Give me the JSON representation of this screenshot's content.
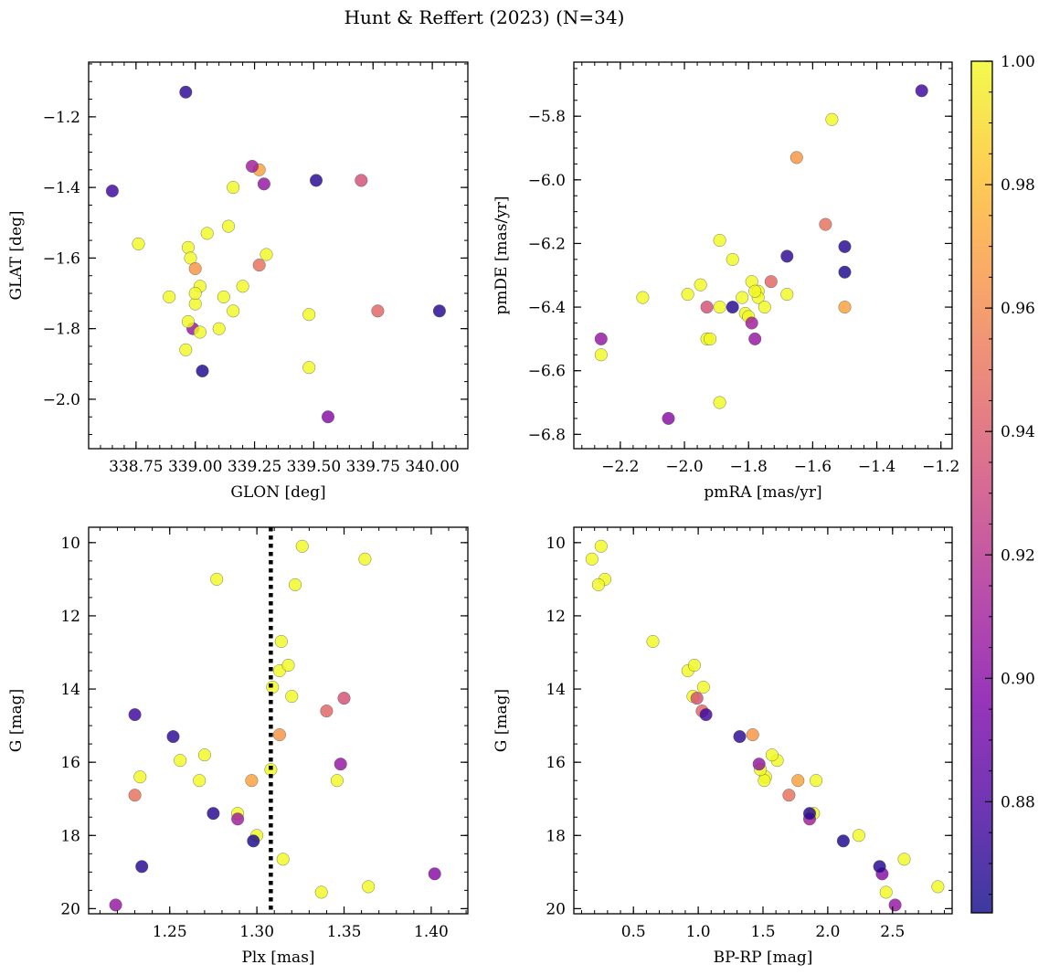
{
  "chart_data": {
    "title": "Hunt & Reffert (2023) (N=34)",
    "type": "scatter",
    "colorbar": {
      "cmap": "plasma",
      "vmin": 0.862,
      "vmax": 1.0,
      "ticks": [
        0.88,
        0.9,
        0.92,
        0.94,
        0.96,
        0.98,
        1.0
      ],
      "tick_labels": [
        "0.88",
        "0.90",
        "0.92",
        "0.94",
        "0.96",
        "0.98",
        "1.00"
      ]
    },
    "panels": [
      {
        "name": "glon-glat",
        "xlabel": "GLON [deg]",
        "ylabel": "GLAT [deg]",
        "xlim": [
          338.55,
          340.15
        ],
        "ylim": [
          -2.14,
          -1.045
        ],
        "yinvert": false,
        "xticks": [
          338.75,
          339.0,
          339.25,
          339.5,
          339.75,
          340.0
        ],
        "xtick_labels": [
          "338.75",
          "339.00",
          "339.25",
          "339.50",
          "339.75",
          "340.00"
        ],
        "yticks": [
          -2.0,
          -1.8,
          -1.6,
          -1.4,
          -1.2
        ],
        "ytick_labels": [
          "−2.0",
          "−1.8",
          "−1.6",
          "−1.4",
          "−1.2"
        ]
      },
      {
        "name": "pmra-pmde",
        "xlabel": "pmRA [mas/yr]",
        "ylabel": "pmDE [mas/yr]",
        "xlim": [
          -2.345,
          -1.165
        ],
        "ylim": [
          -6.845,
          -5.63
        ],
        "yinvert": false,
        "xticks": [
          -2.2,
          -2.0,
          -1.8,
          -1.6,
          -1.4,
          -1.2
        ],
        "xtick_labels": [
          "−2.2",
          "−2.0",
          "−1.8",
          "−1.6",
          "−1.4",
          "−1.2"
        ],
        "yticks": [
          -6.8,
          -6.6,
          -6.4,
          -6.2,
          -6.0,
          -5.8
        ],
        "ytick_labels": [
          "−6.8",
          "−6.6",
          "−6.4",
          "−6.2",
          "−6.0",
          "−5.8"
        ]
      },
      {
        "name": "plx-g",
        "xlabel": "Plx [mas]",
        "ylabel": "G [mag]",
        "xlim": [
          1.2035,
          1.421
        ],
        "ylim": [
          9.58,
          20.14
        ],
        "yinvert": true,
        "xticks": [
          1.25,
          1.3,
          1.35,
          1.4
        ],
        "xtick_labels": [
          "1.25",
          "1.30",
          "1.35",
          "1.40"
        ],
        "yticks": [
          10,
          12,
          14,
          16,
          18,
          20
        ],
        "ytick_labels": [
          "10",
          "12",
          "14",
          "16",
          "18",
          "20"
        ],
        "vline": 1.308
      },
      {
        "name": "bprp-g",
        "xlabel": "BP-RP [mag]",
        "ylabel": "G [mag]",
        "xlim": [
          0.04,
          2.96
        ],
        "ylim": [
          9.58,
          20.14
        ],
        "yinvert": true,
        "xticks": [
          0.5,
          1.0,
          1.5,
          2.0,
          2.5
        ],
        "xtick_labels": [
          "0.5",
          "1.0",
          "1.5",
          "2.0",
          "2.5"
        ],
        "yticks": [
          10,
          12,
          14,
          16,
          18,
          20
        ],
        "ytick_labels": [
          "10",
          "12",
          "14",
          "16",
          "18",
          "20"
        ]
      }
    ],
    "stars": [
      {
        "glon": 338.96,
        "glat": -1.86,
        "pmra": -2.26,
        "pmde": -6.55,
        "plx": 1.289,
        "g": 17.4,
        "bprp": 1.89,
        "prob": 1.0
      },
      {
        "glon": 338.99,
        "glat": -1.8,
        "pmra": -2.26,
        "pmde": -6.5,
        "plx": 1.219,
        "g": 19.9,
        "bprp": 2.52,
        "prob": 0.905
      },
      {
        "glon": 339.05,
        "glat": -1.53,
        "pmra": -2.13,
        "pmde": -6.37,
        "plx": 1.326,
        "g": 10.1,
        "bprp": 0.25,
        "prob": 1.0
      },
      {
        "glon": 338.97,
        "glat": -1.57,
        "pmra": -1.99,
        "pmde": -6.36,
        "plx": 1.362,
        "g": 10.45,
        "bprp": 0.18,
        "prob": 1.0
      },
      {
        "glon": 339.1,
        "glat": -1.8,
        "pmra": -1.95,
        "pmde": -6.33,
        "plx": 1.277,
        "g": 11.0,
        "bprp": 0.28,
        "prob": 1.0
      },
      {
        "glon": 339.3,
        "glat": -1.59,
        "pmra": -1.93,
        "pmde": -6.5,
        "plx": 1.322,
        "g": 11.15,
        "bprp": 0.23,
        "prob": 1.0
      },
      {
        "glon": 339.16,
        "glat": -1.4,
        "pmra": -1.92,
        "pmde": -6.5,
        "plx": 1.314,
        "g": 12.7,
        "bprp": 0.65,
        "prob": 1.0
      },
      {
        "glon": 338.98,
        "glat": -1.6,
        "pmra": -1.89,
        "pmde": -6.19,
        "plx": 1.313,
        "g": 13.5,
        "bprp": 0.92,
        "prob": 1.0
      },
      {
        "glon": 339.02,
        "glat": -1.68,
        "pmra": -1.89,
        "pmde": -6.7,
        "plx": 1.318,
        "g": 13.35,
        "bprp": 0.97,
        "prob": 1.0
      },
      {
        "glon": 339.14,
        "glat": -1.51,
        "pmra": -1.89,
        "pmde": -6.4,
        "plx": 1.309,
        "g": 13.95,
        "bprp": 1.04,
        "prob": 1.0
      },
      {
        "glon": 339.2,
        "glat": -1.68,
        "pmra": -1.85,
        "pmde": -6.25,
        "plx": 1.32,
        "g": 14.2,
        "bprp": 0.96,
        "prob": 1.0
      },
      {
        "glon": 338.89,
        "glat": -1.71,
        "pmra": -1.82,
        "pmde": -6.37,
        "plx": 1.256,
        "g": 15.95,
        "bprp": 1.61,
        "prob": 1.0
      },
      {
        "glon": 339.0,
        "glat": -1.73,
        "pmra": -1.81,
        "pmde": -6.42,
        "plx": 1.27,
        "g": 15.8,
        "bprp": 1.57,
        "prob": 1.0
      },
      {
        "glon": 339.0,
        "glat": -1.7,
        "pmra": -1.8,
        "pmde": -6.43,
        "plx": 1.233,
        "g": 16.4,
        "bprp": 1.52,
        "prob": 1.0
      },
      {
        "glon": 338.76,
        "glat": -1.56,
        "pmra": -1.79,
        "pmde": -6.32,
        "plx": 1.267,
        "g": 16.5,
        "bprp": 1.51,
        "prob": 1.0
      },
      {
        "glon": 339.12,
        "glat": -1.71,
        "pmra": -1.77,
        "pmde": -6.35,
        "plx": 1.346,
        "g": 16.5,
        "bprp": 1.91,
        "prob": 1.0
      },
      {
        "glon": 339.16,
        "glat": -1.75,
        "pmra": -1.77,
        "pmde": -6.37,
        "plx": 1.308,
        "g": 16.2,
        "bprp": 1.48,
        "prob": 1.0
      },
      {
        "glon": 339.48,
        "glat": -1.76,
        "pmra": -1.75,
        "pmde": -6.4,
        "plx": 1.3,
        "g": 18.0,
        "bprp": 2.24,
        "prob": 1.0
      },
      {
        "glon": 339.48,
        "glat": -1.91,
        "pmra": -1.68,
        "pmde": -6.36,
        "plx": 1.315,
        "g": 18.65,
        "bprp": 2.59,
        "prob": 1.0
      },
      {
        "glon": 339.02,
        "glat": -1.81,
        "pmra": -1.54,
        "pmde": -5.81,
        "plx": 1.364,
        "g": 19.4,
        "bprp": 2.85,
        "prob": 1.0
      },
      {
        "glon": 338.97,
        "glat": -1.78,
        "pmra": -1.78,
        "pmde": -6.35,
        "plx": 1.337,
        "g": 19.55,
        "bprp": 2.45,
        "prob": 1.0
      },
      {
        "glon": 339.0,
        "glat": -1.63,
        "pmra": -1.65,
        "pmde": -5.93,
        "plx": 1.313,
        "g": 15.25,
        "bprp": 1.42,
        "prob": 0.965
      },
      {
        "glon": 339.27,
        "glat": -1.35,
        "pmra": -1.5,
        "pmde": -6.4,
        "plx": 1.297,
        "g": 16.5,
        "bprp": 1.77,
        "prob": 0.97
      },
      {
        "glon": 339.27,
        "glat": -1.62,
        "pmra": -1.56,
        "pmde": -6.14,
        "plx": 1.23,
        "g": 16.9,
        "bprp": 1.7,
        "prob": 0.95
      },
      {
        "glon": 339.77,
        "glat": -1.75,
        "pmra": -1.73,
        "pmde": -6.32,
        "plx": 1.34,
        "g": 14.6,
        "bprp": 1.03,
        "prob": 0.945
      },
      {
        "glon": 339.7,
        "glat": -1.38,
        "pmra": -1.93,
        "pmde": -6.4,
        "plx": 1.35,
        "g": 14.25,
        "bprp": 0.99,
        "prob": 0.935
      },
      {
        "glon": 339.24,
        "glat": -1.34,
        "pmra": -1.79,
        "pmde": -6.45,
        "plx": 1.289,
        "g": 17.55,
        "bprp": 1.86,
        "prob": 0.91
      },
      {
        "glon": 339.29,
        "glat": -1.39,
        "pmra": -1.78,
        "pmde": -6.5,
        "plx": 1.348,
        "g": 16.05,
        "bprp": 1.47,
        "prob": 0.905
      },
      {
        "glon": 339.56,
        "glat": -2.05,
        "pmra": -2.05,
        "pmde": -6.75,
        "plx": 1.402,
        "g": 19.05,
        "bprp": 2.42,
        "prob": 0.9
      },
      {
        "glon": 338.65,
        "glat": -1.41,
        "pmra": -1.26,
        "pmde": -5.72,
        "plx": 1.23,
        "g": 14.7,
        "bprp": 1.06,
        "prob": 0.875
      },
      {
        "glon": 338.96,
        "glat": -1.13,
        "pmra": -1.68,
        "pmde": -6.24,
        "plx": 1.252,
        "g": 15.3,
        "bprp": 1.32,
        "prob": 0.87
      },
      {
        "glon": 339.51,
        "glat": -1.38,
        "pmra": -1.5,
        "pmde": -6.21,
        "plx": 1.275,
        "g": 17.4,
        "bprp": 1.86,
        "prob": 0.868
      },
      {
        "glon": 339.03,
        "glat": -1.92,
        "pmra": -1.5,
        "pmde": -6.29,
        "plx": 1.298,
        "g": 18.15,
        "bprp": 2.12,
        "prob": 0.866
      },
      {
        "glon": 340.03,
        "glat": -1.75,
        "pmra": -1.85,
        "pmde": -6.4,
        "plx": 1.234,
        "g": 18.85,
        "bprp": 2.4,
        "prob": 0.868
      }
    ]
  }
}
